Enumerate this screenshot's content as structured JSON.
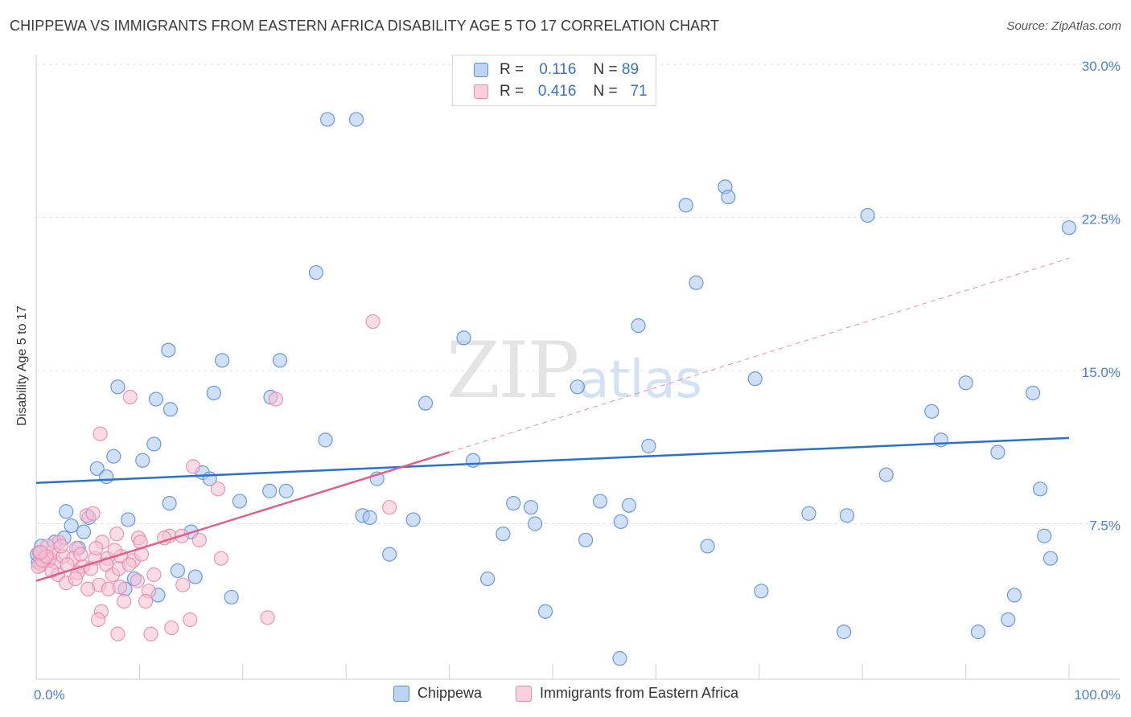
{
  "title": "CHIPPEWA VS IMMIGRANTS FROM EASTERN AFRICA DISABILITY AGE 5 TO 17 CORRELATION CHART",
  "source": "Source: ZipAtlas.com",
  "watermark": {
    "zip": "ZIP",
    "atlas": "atlas"
  },
  "legend": {
    "rows": [
      {
        "r_label": "R =",
        "r_value": "0.116",
        "n_label": "N =",
        "n_value": "89"
      },
      {
        "r_label": "R =",
        "r_value": "0.416",
        "n_label": "N =",
        "n_value": "71"
      }
    ]
  },
  "bottom_legend": [
    "Chippewa",
    "Immigrants from Eastern Africa"
  ],
  "colors": {
    "blue_fill": "#a9c8f0",
    "blue_stroke": "#5b8fd6",
    "blue_line": "#2b6fd0",
    "pink_fill": "#f7bfd1",
    "pink_stroke": "#e98aaa",
    "pink_line": "#e0608c",
    "grid": "#e3e3e3",
    "tick_text": "#4a7fd0"
  },
  "chart_data": {
    "type": "scatter",
    "title": "CHIPPEWA VS IMMIGRANTS FROM EASTERN AFRICA DISABILITY AGE 5 TO 17 CORRELATION CHART",
    "xlabel": "",
    "ylabel": "Disability Age 5 to 17",
    "xlim": [
      0,
      100
    ],
    "ylim": [
      0,
      30
    ],
    "x_tick_labels": [
      "0.0%",
      "100.0%"
    ],
    "y_ticks": [
      7.5,
      15.0,
      22.5,
      30.0
    ],
    "y_tick_labels": [
      "7.5%",
      "15.0%",
      "22.5%",
      "30.0%"
    ],
    "grid": true,
    "legend_position": "top-center",
    "series": [
      {
        "name": "Chippewa",
        "color": "#5b8fd6",
        "R": 0.116,
        "N": 89,
        "trend": {
          "x": [
            0,
            100
          ],
          "y": [
            9.5,
            11.7
          ],
          "style": "solid"
        },
        "points": [
          [
            28.2,
            27.3
          ],
          [
            31.0,
            27.3
          ],
          [
            66.7,
            24.0
          ],
          [
            62.9,
            23.1
          ],
          [
            67.0,
            23.5
          ],
          [
            80.5,
            22.6
          ],
          [
            100.0,
            22.0
          ],
          [
            27.1,
            19.8
          ],
          [
            63.9,
            19.3
          ],
          [
            58.3,
            17.2
          ],
          [
            41.4,
            16.6
          ],
          [
            12.8,
            16.0
          ],
          [
            18.0,
            15.5
          ],
          [
            23.6,
            15.5
          ],
          [
            7.9,
            14.2
          ],
          [
            52.4,
            14.2
          ],
          [
            69.6,
            14.6
          ],
          [
            90.0,
            14.4
          ],
          [
            96.5,
            13.9
          ],
          [
            17.2,
            13.9
          ],
          [
            11.6,
            13.6
          ],
          [
            22.7,
            13.7
          ],
          [
            13.0,
            13.1
          ],
          [
            37.7,
            13.4
          ],
          [
            86.7,
            13.0
          ],
          [
            7.5,
            10.8
          ],
          [
            10.3,
            10.6
          ],
          [
            11.4,
            11.4
          ],
          [
            28.0,
            11.6
          ],
          [
            59.3,
            11.3
          ],
          [
            87.6,
            11.6
          ],
          [
            93.1,
            11.0
          ],
          [
            5.9,
            10.2
          ],
          [
            16.1,
            10.0
          ],
          [
            42.3,
            10.6
          ],
          [
            6.8,
            9.8
          ],
          [
            16.8,
            9.7
          ],
          [
            33.0,
            9.7
          ],
          [
            82.3,
            9.9
          ],
          [
            22.6,
            9.1
          ],
          [
            24.2,
            9.1
          ],
          [
            97.2,
            9.2
          ],
          [
            12.9,
            8.5
          ],
          [
            19.7,
            8.6
          ],
          [
            46.2,
            8.5
          ],
          [
            47.9,
            8.3
          ],
          [
            54.6,
            8.6
          ],
          [
            57.4,
            8.4
          ],
          [
            2.9,
            8.1
          ],
          [
            5.1,
            7.8
          ],
          [
            8.9,
            7.7
          ],
          [
            31.6,
            7.9
          ],
          [
            32.3,
            7.8
          ],
          [
            36.5,
            7.7
          ],
          [
            74.8,
            8.0
          ],
          [
            78.5,
            7.9
          ],
          [
            3.4,
            7.4
          ],
          [
            4.6,
            7.1
          ],
          [
            15.0,
            7.1
          ],
          [
            45.2,
            7.0
          ],
          [
            48.3,
            7.5
          ],
          [
            53.2,
            6.7
          ],
          [
            56.6,
            7.6
          ],
          [
            97.6,
            6.9
          ],
          [
            0.5,
            6.4
          ],
          [
            1.8,
            6.6
          ],
          [
            2.7,
            6.8
          ],
          [
            4.1,
            6.3
          ],
          [
            34.2,
            6.0
          ],
          [
            65.0,
            6.4
          ],
          [
            98.2,
            5.8
          ],
          [
            0.2,
            5.6
          ],
          [
            0.7,
            5.9
          ],
          [
            1.2,
            5.7
          ],
          [
            13.7,
            5.2
          ],
          [
            15.4,
            4.9
          ],
          [
            43.7,
            4.8
          ],
          [
            9.5,
            4.8
          ],
          [
            8.6,
            4.3
          ],
          [
            11.8,
            4.0
          ],
          [
            18.9,
            3.9
          ],
          [
            70.2,
            4.2
          ],
          [
            94.7,
            4.0
          ],
          [
            49.3,
            3.2
          ],
          [
            94.1,
            2.8
          ],
          [
            78.2,
            2.2
          ],
          [
            91.2,
            2.2
          ],
          [
            56.5,
            0.9
          ],
          [
            0.1,
            6.0
          ]
        ]
      },
      {
        "name": "Immigrants from Eastern Africa",
        "color": "#e98aaa",
        "R": 0.416,
        "N": 71,
        "trend": {
          "x": [
            0,
            40,
            100
          ],
          "y": [
            4.7,
            11.0,
            20.5
          ],
          "style": "solid-then-dashed"
        },
        "points": [
          [
            32.6,
            17.4
          ],
          [
            9.1,
            13.7
          ],
          [
            23.2,
            13.6
          ],
          [
            6.2,
            11.9
          ],
          [
            15.2,
            10.3
          ],
          [
            17.6,
            9.2
          ],
          [
            34.2,
            8.3
          ],
          [
            4.9,
            7.9
          ],
          [
            5.5,
            8.0
          ],
          [
            7.8,
            7.0
          ],
          [
            9.9,
            6.8
          ],
          [
            12.9,
            6.9
          ],
          [
            14.1,
            6.9
          ],
          [
            10.1,
            6.6
          ],
          [
            6.4,
            6.6
          ],
          [
            2.2,
            6.6
          ],
          [
            3.9,
            6.3
          ],
          [
            0.3,
            6.1
          ],
          [
            0.9,
            5.9
          ],
          [
            1.3,
            5.8
          ],
          [
            1.9,
            5.6
          ],
          [
            0.5,
            5.5
          ],
          [
            0.2,
            5.4
          ],
          [
            1.6,
            6.1
          ],
          [
            2.6,
            5.9
          ],
          [
            3.6,
            5.8
          ],
          [
            4.5,
            5.4
          ],
          [
            5.7,
            5.8
          ],
          [
            6.9,
            5.8
          ],
          [
            8.2,
            5.9
          ],
          [
            9.4,
            5.7
          ],
          [
            17.9,
            5.8
          ],
          [
            4.0,
            5.1
          ],
          [
            5.3,
            5.3
          ],
          [
            6.8,
            5.5
          ],
          [
            7.4,
            5.0
          ],
          [
            8.0,
            5.3
          ],
          [
            9.8,
            4.7
          ],
          [
            2.1,
            5.0
          ],
          [
            2.9,
            4.6
          ],
          [
            3.8,
            4.8
          ],
          [
            5.0,
            4.3
          ],
          [
            6.1,
            4.5
          ],
          [
            7.0,
            4.3
          ],
          [
            8.1,
            4.4
          ],
          [
            10.9,
            4.2
          ],
          [
            11.4,
            5.0
          ],
          [
            14.2,
            4.5
          ],
          [
            8.5,
            3.7
          ],
          [
            10.6,
            3.7
          ],
          [
            6.3,
            3.2
          ],
          [
            6.0,
            2.8
          ],
          [
            14.9,
            2.8
          ],
          [
            13.1,
            2.4
          ],
          [
            22.4,
            2.9
          ],
          [
            7.9,
            2.1
          ],
          [
            11.1,
            2.1
          ],
          [
            1.1,
            6.4
          ],
          [
            0.6,
            5.7
          ],
          [
            1.5,
            5.2
          ],
          [
            2.4,
            6.4
          ],
          [
            3.0,
            5.5
          ],
          [
            4.3,
            6.0
          ],
          [
            5.8,
            6.3
          ],
          [
            7.6,
            6.2
          ],
          [
            9.0,
            5.5
          ],
          [
            10.2,
            6.0
          ],
          [
            12.4,
            6.8
          ],
          [
            15.8,
            6.7
          ],
          [
            1.0,
            5.9
          ],
          [
            0.4,
            6.1
          ]
        ]
      }
    ]
  }
}
